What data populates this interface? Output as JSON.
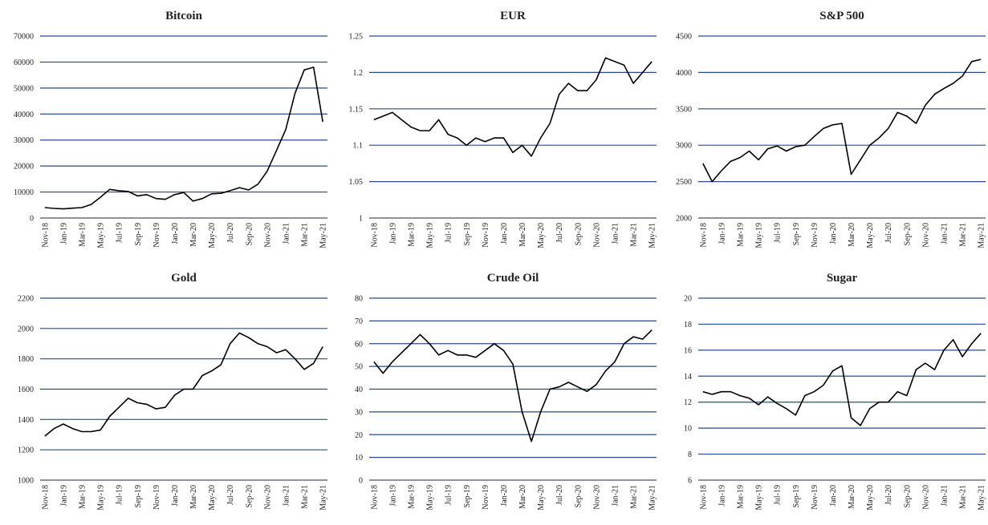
{
  "chart_data": [
    {
      "type": "line",
      "title": "Bitcoin",
      "color": "#000000",
      "grid": true,
      "categories": [
        "Nov-18",
        null,
        "Jan-19",
        null,
        "Mar-19",
        null,
        "May-19",
        null,
        "Jul-19",
        null,
        "Sep-19",
        null,
        "Nov-19",
        null,
        "Jan-20",
        null,
        "Mar-20",
        null,
        "May-20",
        null,
        "Jul-20",
        null,
        "Sep-20",
        null,
        "Nov-20",
        null,
        "Jan-21",
        null,
        "Mar-21",
        null,
        "May-21"
      ],
      "values": [
        4000,
        3700,
        3500,
        3800,
        4000,
        5200,
        8000,
        11000,
        10500,
        10200,
        8500,
        9000,
        7500,
        7200,
        9000,
        9800,
        6500,
        7500,
        9300,
        9500,
        10500,
        11700,
        10800,
        13000,
        18000,
        26000,
        34000,
        48000,
        57000,
        58000,
        37000
      ],
      "ylim": [
        0,
        70000
      ],
      "yticks": [
        0,
        10000,
        20000,
        30000,
        40000,
        50000,
        60000,
        70000
      ]
    },
    {
      "type": "line",
      "title": "EUR",
      "color": "#000000",
      "grid": true,
      "categories": [
        "Nov-18",
        null,
        "Jan-19",
        null,
        "Mar-19",
        null,
        "May-19",
        null,
        "Jul-19",
        null,
        "Sep-19",
        null,
        "Nov-19",
        null,
        "Jan-20",
        null,
        "Mar-20",
        null,
        "May-20",
        null,
        "Jul-20",
        null,
        "Sep-20",
        null,
        "Nov-20",
        null,
        "Jan-21",
        null,
        "Mar-21",
        null,
        "May-21"
      ],
      "values": [
        1.135,
        1.14,
        1.145,
        1.135,
        1.125,
        1.12,
        1.12,
        1.135,
        1.115,
        1.11,
        1.1,
        1.11,
        1.105,
        1.11,
        1.11,
        1.09,
        1.1,
        1.085,
        1.11,
        1.13,
        1.17,
        1.185,
        1.175,
        1.175,
        1.19,
        1.22,
        1.215,
        1.21,
        1.185,
        1.2,
        1.215
      ],
      "ylim": [
        1,
        1.25
      ],
      "yticks": [
        1,
        1.05,
        1.1,
        1.15,
        1.2,
        1.25
      ]
    },
    {
      "type": "line",
      "title": "S&P 500",
      "color": "#000000",
      "grid": true,
      "categories": [
        "Nov-18",
        null,
        "Jan-19",
        null,
        "Mar-19",
        null,
        "May-19",
        null,
        "Jul-19",
        null,
        "Sep-19",
        null,
        "Nov-19",
        null,
        "Jan-20",
        null,
        "Mar-20",
        null,
        "May-20",
        null,
        "Jul-20",
        null,
        "Sep-20",
        null,
        "Nov-20",
        null,
        "Jan-21",
        null,
        "Mar-21",
        null,
        "May-21"
      ],
      "values": [
        2750,
        2500,
        2650,
        2780,
        2830,
        2920,
        2800,
        2950,
        2990,
        2920,
        2980,
        3000,
        3120,
        3230,
        3280,
        3300,
        2600,
        2800,
        3000,
        3100,
        3230,
        3450,
        3400,
        3300,
        3550,
        3700,
        3780,
        3850,
        3950,
        4150,
        4180
      ],
      "ylim": [
        2000,
        4500
      ],
      "yticks": [
        2000,
        2500,
        3000,
        3500,
        4000,
        4500
      ]
    },
    {
      "type": "line",
      "title": "Gold",
      "color": "#000000",
      "grid": true,
      "categories": [
        "Nov-18",
        null,
        "Jan-19",
        null,
        "Mar-19",
        null,
        "May-19",
        null,
        "Jul-19",
        null,
        "Sep-19",
        null,
        "Nov-19",
        null,
        "Jan-20",
        null,
        "Mar-20",
        null,
        "May-20",
        null,
        "Jul-20",
        null,
        "Sep-20",
        null,
        "Nov-20",
        null,
        "Jan-21",
        null,
        "Mar-21",
        null,
        "May-21"
      ],
      "values": [
        1290,
        1340,
        1370,
        1340,
        1320,
        1320,
        1330,
        1420,
        1480,
        1540,
        1510,
        1500,
        1470,
        1480,
        1560,
        1600,
        1600,
        1690,
        1720,
        1760,
        1900,
        1970,
        1940,
        1900,
        1880,
        1840,
        1860,
        1800,
        1730,
        1770,
        1880
      ],
      "ylim": [
        1000,
        2200
      ],
      "yticks": [
        1000,
        1200,
        1400,
        1600,
        1800,
        2000,
        2200
      ]
    },
    {
      "type": "line",
      "title": "Crude Oil",
      "color": "#000000",
      "grid": true,
      "categories": [
        "Nov-18",
        null,
        "Jan-19",
        null,
        "Mar-19",
        null,
        "May-19",
        null,
        "Jul-19",
        null,
        "Sep-19",
        null,
        "Nov-19",
        null,
        "Jan-20",
        null,
        "Mar-20",
        null,
        "May-20",
        null,
        "Jul-20",
        null,
        "Sep-20",
        null,
        "Nov-20",
        null,
        "Jan-21",
        null,
        "Mar-21",
        null,
        "May-21"
      ],
      "values": [
        52,
        47,
        52,
        56,
        60,
        64,
        60,
        55,
        57,
        55,
        55,
        54,
        57,
        60,
        57,
        51,
        30,
        17,
        30,
        40,
        41,
        43,
        41,
        39,
        42,
        48,
        52,
        60,
        63,
        62,
        66
      ],
      "ylim": [
        0,
        80
      ],
      "yticks": [
        0,
        10,
        20,
        30,
        40,
        50,
        60,
        70,
        80
      ]
    },
    {
      "type": "line",
      "title": "Sugar",
      "color": "#000000",
      "grid": true,
      "categories": [
        "Nov-18",
        null,
        "Jan-19",
        null,
        "Mar-19",
        null,
        "May-19",
        null,
        "Jul-19",
        null,
        "Sep-19",
        null,
        "Nov-19",
        null,
        "Jan-20",
        null,
        "Mar-20",
        null,
        "May-20",
        null,
        "Jul-20",
        null,
        "Sep-20",
        null,
        "Nov-20",
        null,
        "Jan-21",
        null,
        "Mar-21",
        null,
        "May-21"
      ],
      "values": [
        12.8,
        12.6,
        12.8,
        12.8,
        12.5,
        12.3,
        11.8,
        12.4,
        11.9,
        11.5,
        11.0,
        12.5,
        12.8,
        13.3,
        14.4,
        14.8,
        10.8,
        10.2,
        11.5,
        12.0,
        12.0,
        12.8,
        12.5,
        14.5,
        15.0,
        14.5,
        16.0,
        16.8,
        15.5,
        16.5,
        17.3
      ],
      "ylim": [
        6,
        20
      ],
      "yticks": [
        6,
        8,
        10,
        12,
        14,
        16,
        18,
        20
      ]
    }
  ]
}
